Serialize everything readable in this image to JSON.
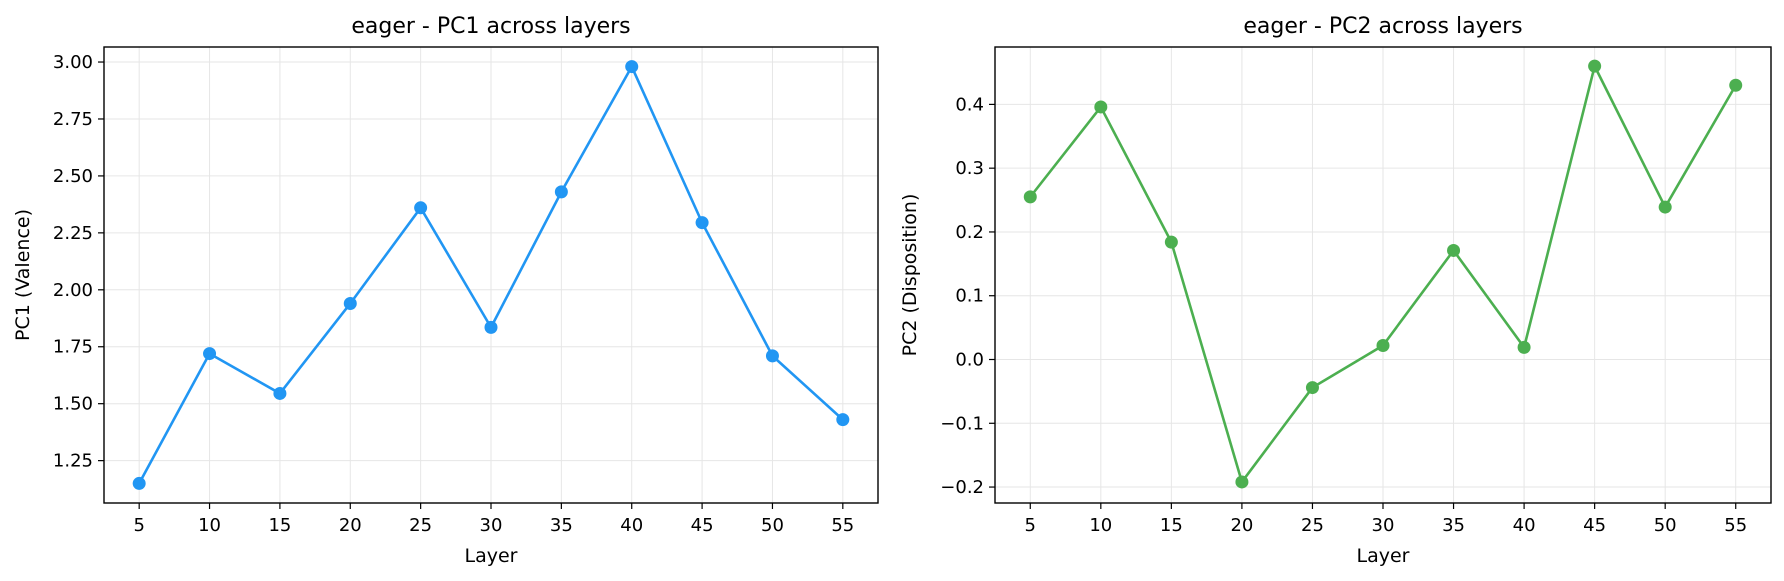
{
  "chart_data": [
    {
      "type": "line",
      "title": "eager - PC1 across layers",
      "xlabel": "Layer",
      "ylabel": "PC1 (Valence)",
      "x": [
        5,
        10,
        15,
        20,
        25,
        30,
        35,
        40,
        45,
        50,
        55
      ],
      "xticks": [
        5,
        10,
        15,
        20,
        25,
        30,
        35,
        40,
        45,
        50,
        55
      ],
      "xlim": [
        2.5,
        57.5
      ],
      "ylim": [
        1.064,
        3.066
      ],
      "yticks": [
        1.25,
        1.5,
        1.75,
        2.0,
        2.25,
        2.5,
        2.75,
        3.0
      ],
      "ytick_labels": [
        "1.25",
        "1.50",
        "1.75",
        "2.00",
        "2.25",
        "2.50",
        "2.75",
        "3.00"
      ],
      "grid": true,
      "color": "#2196F3",
      "series": [
        {
          "values": [
            1.15,
            1.72,
            1.545,
            1.94,
            2.36,
            1.835,
            2.43,
            2.98,
            2.295,
            1.71,
            1.43
          ]
        }
      ]
    },
    {
      "type": "line",
      "title": "eager - PC2 across layers",
      "xlabel": "Layer",
      "ylabel": "PC2 (Disposition)",
      "x": [
        5,
        10,
        15,
        20,
        25,
        30,
        35,
        40,
        45,
        50,
        55
      ],
      "xticks": [
        5,
        10,
        15,
        20,
        25,
        30,
        35,
        40,
        45,
        50,
        55
      ],
      "xlim": [
        2.5,
        57.5
      ],
      "ylim": [
        -0.225,
        0.49
      ],
      "yticks": [
        -0.2,
        -0.1,
        0.0,
        0.1,
        0.2,
        0.3,
        0.4
      ],
      "ytick_labels": [
        "−0.2",
        "−0.1",
        "0.0",
        "0.1",
        "0.2",
        "0.3",
        "0.4"
      ],
      "grid": true,
      "color": "#4CAF50",
      "series": [
        {
          "values": [
            0.255,
            0.396,
            0.184,
            -0.192,
            -0.044,
            0.022,
            0.171,
            0.019,
            0.46,
            0.239,
            0.43
          ]
        }
      ]
    }
  ]
}
